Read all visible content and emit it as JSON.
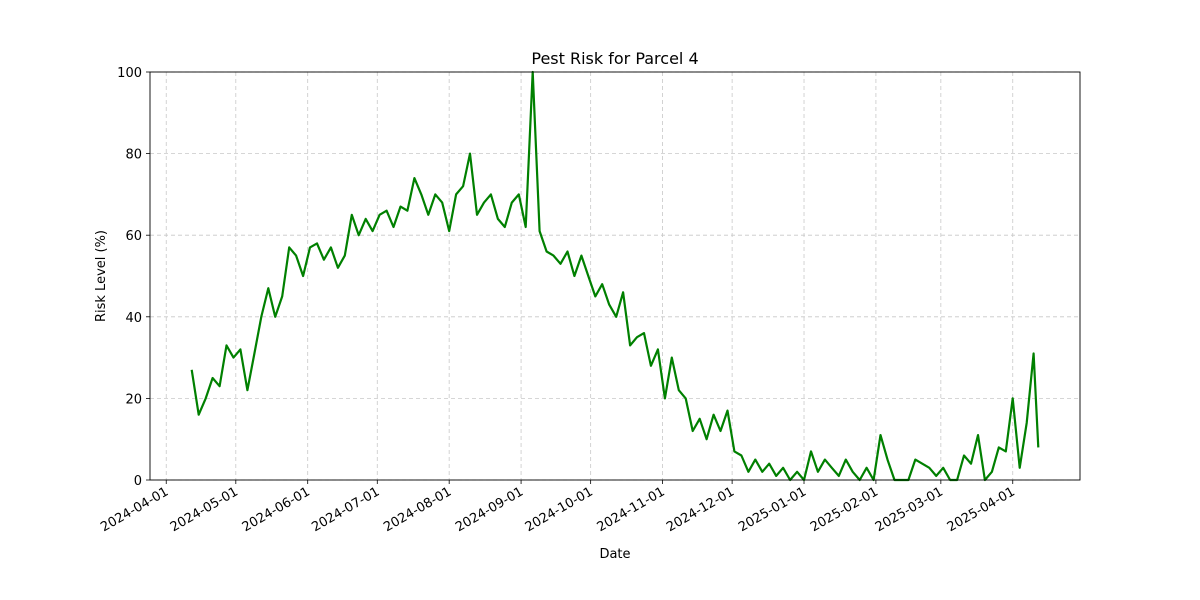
{
  "chart_data": {
    "type": "line",
    "title": "Pest Risk for Parcel 4",
    "xlabel": "Date",
    "ylabel": "Risk Level (%)",
    "x": [
      "2024-04-12",
      "2024-04-15",
      "2024-04-18",
      "2024-04-21",
      "2024-04-24",
      "2024-04-27",
      "2024-04-30",
      "2024-05-03",
      "2024-05-06",
      "2024-05-09",
      "2024-05-12",
      "2024-05-15",
      "2024-05-18",
      "2024-05-21",
      "2024-05-24",
      "2024-05-27",
      "2024-05-30",
      "2024-06-02",
      "2024-06-05",
      "2024-06-08",
      "2024-06-11",
      "2024-06-14",
      "2024-06-17",
      "2024-06-20",
      "2024-06-23",
      "2024-06-26",
      "2024-06-29",
      "2024-07-02",
      "2024-07-05",
      "2024-07-08",
      "2024-07-11",
      "2024-07-14",
      "2024-07-17",
      "2024-07-20",
      "2024-07-23",
      "2024-07-26",
      "2024-07-29",
      "2024-08-01",
      "2024-08-04",
      "2024-08-07",
      "2024-08-10",
      "2024-08-13",
      "2024-08-16",
      "2024-08-19",
      "2024-08-22",
      "2024-08-25",
      "2024-08-28",
      "2024-08-31",
      "2024-09-03",
      "2024-09-06",
      "2024-09-09",
      "2024-09-12",
      "2024-09-15",
      "2024-09-18",
      "2024-09-21",
      "2024-09-24",
      "2024-09-27",
      "2024-09-30",
      "2024-10-03",
      "2024-10-06",
      "2024-10-09",
      "2024-10-12",
      "2024-10-15",
      "2024-10-18",
      "2024-10-21",
      "2024-10-24",
      "2024-10-27",
      "2024-10-30",
      "2024-11-02",
      "2024-11-05",
      "2024-11-08",
      "2024-11-11",
      "2024-11-14",
      "2024-11-17",
      "2024-11-20",
      "2024-11-23",
      "2024-11-26",
      "2024-11-29",
      "2024-12-02",
      "2024-12-05",
      "2024-12-08",
      "2024-12-11",
      "2024-12-14",
      "2024-12-17",
      "2024-12-20",
      "2024-12-23",
      "2024-12-26",
      "2024-12-29",
      "2025-01-01",
      "2025-01-04",
      "2025-01-07",
      "2025-01-10",
      "2025-01-13",
      "2025-01-16",
      "2025-01-19",
      "2025-01-22",
      "2025-01-25",
      "2025-01-28",
      "2025-01-31",
      "2025-02-03",
      "2025-02-06",
      "2025-02-09",
      "2025-02-12",
      "2025-02-15",
      "2025-02-18",
      "2025-02-21",
      "2025-02-24",
      "2025-02-27",
      "2025-03-02",
      "2025-03-05",
      "2025-03-08",
      "2025-03-11",
      "2025-03-14",
      "2025-03-17",
      "2025-03-20",
      "2025-03-23",
      "2025-03-26",
      "2025-03-29",
      "2025-04-01",
      "2025-04-04",
      "2025-04-07",
      "2025-04-10",
      "2025-04-12"
    ],
    "values": [
      27,
      16,
      20,
      25,
      23,
      33,
      30,
      32,
      22,
      31,
      40,
      47,
      40,
      45,
      57,
      55,
      50,
      57,
      58,
      54,
      57,
      52,
      55,
      65,
      60,
      64,
      61,
      65,
      66,
      62,
      67,
      66,
      74,
      70,
      65,
      70,
      68,
      61,
      70,
      72,
      80,
      65,
      68,
      70,
      64,
      62,
      68,
      70,
      62,
      100,
      61,
      56,
      55,
      53,
      56,
      50,
      55,
      50,
      45,
      48,
      43,
      40,
      46,
      33,
      35,
      36,
      28,
      32,
      20,
      30,
      22,
      20,
      12,
      15,
      10,
      16,
      12,
      17,
      7,
      6,
      2,
      5,
      2,
      4,
      1,
      3,
      0,
      2,
      0,
      7,
      2,
      5,
      3,
      1,
      5,
      2,
      0,
      3,
      0,
      11,
      5,
      0,
      0,
      0,
      5,
      4,
      3,
      1,
      3,
      0,
      0,
      6,
      4,
      11,
      0,
      2,
      8,
      7,
      20,
      3,
      14,
      31,
      8
    ],
    "color": "#008000",
    "xlim": [
      "2024-03-25",
      "2025-04-30"
    ],
    "xticks": [
      "2024-04-01",
      "2024-05-01",
      "2024-06-01",
      "2024-07-01",
      "2024-08-01",
      "2024-09-01",
      "2024-10-01",
      "2024-11-01",
      "2024-12-01",
      "2025-01-01",
      "2025-02-01",
      "2025-03-01",
      "2025-04-01"
    ],
    "ylim": [
      0,
      100
    ],
    "yticks": [
      0,
      20,
      40,
      60,
      80,
      100
    ],
    "grid": true
  }
}
